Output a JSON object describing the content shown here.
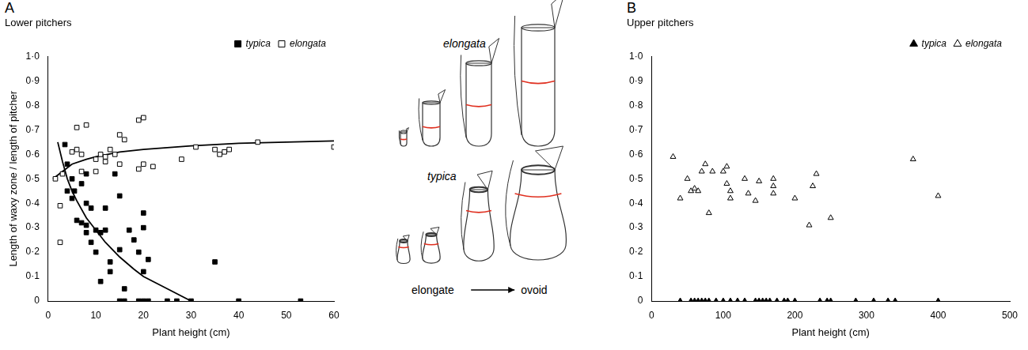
{
  "chart_data": [
    {
      "panel": "A",
      "type": "scatter",
      "title": "Lower pitchers",
      "x_label": "Plant height (cm)",
      "y_label": "Length of waxy zone / length of pitcher",
      "xlim": [
        0,
        60
      ],
      "xticks": [
        0,
        10,
        20,
        30,
        40,
        50,
        60
      ],
      "ylim": [
        0,
        1
      ],
      "yticks": [
        0,
        {
          "value": 0.1,
          "label": "0·1"
        },
        {
          "value": 0.2,
          "label": "0·2"
        },
        {
          "value": 0.3,
          "label": "0·3"
        },
        {
          "value": 0.4,
          "label": "0·4"
        },
        {
          "value": 0.5,
          "label": "0·5"
        },
        {
          "value": 0.6,
          "label": "0·6"
        },
        {
          "value": 0.7,
          "label": "0·7"
        },
        {
          "value": 0.8,
          "label": "0·8"
        },
        {
          "value": 0.9,
          "label": "0·9"
        },
        {
          "value": 1,
          "label": "1·0"
        }
      ],
      "grid": false,
      "legend": "top right",
      "series": [
        {
          "name": "typica",
          "color": "#000000",
          "marker": "filled square",
          "x": [
            3.5,
            4,
            5,
            4,
            5.5,
            5,
            6,
            7,
            8,
            7,
            8,
            8,
            9,
            8,
            9,
            10,
            11,
            10,
            12,
            12,
            11,
            13,
            13,
            14,
            15,
            15,
            15,
            16,
            16,
            17,
            18,
            19,
            20,
            20,
            21,
            20,
            19,
            20,
            21,
            25,
            27,
            30,
            35,
            40,
            53
          ],
          "values": [
            0.64,
            0.56,
            0.5,
            0.45,
            0.45,
            0.42,
            0.33,
            0.32,
            0.31,
            0.48,
            0.52,
            0.4,
            0.38,
            0.28,
            0.24,
            0.29,
            0.28,
            0.2,
            0.38,
            0.29,
            0.08,
            0.16,
            0.12,
            0.52,
            0.43,
            0.21,
            0,
            0.05,
            0,
            0.29,
            0.25,
            0.2,
            0.36,
            0.3,
            0.17,
            0.12,
            0,
            0,
            0,
            0,
            0,
            0,
            0.16,
            0,
            0
          ]
        },
        {
          "name": "elongata",
          "color": "#000000",
          "marker": "open square",
          "x": [
            1.5,
            2.5,
            2.5,
            3,
            5,
            6,
            6,
            7,
            8,
            7,
            10,
            10,
            11,
            12,
            12,
            13,
            14,
            15,
            15,
            16,
            19,
            20,
            19,
            20,
            22,
            28,
            31,
            35,
            36,
            37,
            38,
            44,
            60
          ],
          "values": [
            0.5,
            0.24,
            0.39,
            0.52,
            0.61,
            0.71,
            0.62,
            0.6,
            0.72,
            0.53,
            0.53,
            0.58,
            0.6,
            0.59,
            0.57,
            0.62,
            0.6,
            0.68,
            0.56,
            0.66,
            0.74,
            0.75,
            0.54,
            0.56,
            0.55,
            0.58,
            0.63,
            0.62,
            0.6,
            0.61,
            0.62,
            0.65,
            0.63
          ]
        },
        {
          "type": "line",
          "color": "#000000",
          "line_style": "solid",
          "x": [
            2,
            3,
            4,
            5,
            6,
            8,
            10,
            12,
            15,
            18,
            20,
            25,
            30
          ],
          "values": [
            0.65,
            0.57,
            0.5,
            0.45,
            0.41,
            0.34,
            0.29,
            0.24,
            0.18,
            0.13,
            0.1,
            0.05,
            0
          ]
        },
        {
          "type": "line",
          "color": "#000000",
          "line_style": "solid",
          "x": [
            1,
            3,
            5,
            8,
            10,
            15,
            20,
            30,
            40,
            50,
            60
          ],
          "values": [
            0.5,
            0.53,
            0.56,
            0.58,
            0.59,
            0.61,
            0.62,
            0.635,
            0.645,
            0.65,
            0.655
          ]
        }
      ]
    },
    {
      "panel": "B",
      "type": "scatter",
      "title": "Upper pitchers",
      "x_label": "Plant height (cm)",
      "xlim": [
        0,
        500
      ],
      "xticks": [
        0,
        100,
        200,
        300,
        400,
        500
      ],
      "ylim": [
        0,
        1
      ],
      "yticks": [
        0,
        {
          "value": 0.1,
          "label": "0·1"
        },
        {
          "value": 0.2,
          "label": "0·2"
        },
        {
          "value": 0.3,
          "label": "0·3"
        },
        {
          "value": 0.4,
          "label": "0·4"
        },
        {
          "value": 0.5,
          "label": "0·5"
        },
        {
          "value": 0.6,
          "label": "0·6"
        },
        {
          "value": 0.7,
          "label": "0·7"
        },
        {
          "value": 0.8,
          "label": "0·8"
        },
        {
          "value": 0.9,
          "label": "0·9"
        },
        {
          "value": 1,
          "label": "1·0"
        }
      ],
      "grid": false,
      "legend": "top right",
      "series": [
        {
          "name": "typica",
          "color": "#000000",
          "marker": "filled triangle",
          "x": [
            40,
            55,
            60,
            65,
            70,
            75,
            80,
            90,
            100,
            110,
            120,
            130,
            145,
            150,
            155,
            160,
            165,
            175,
            185,
            190,
            200,
            235,
            245,
            250,
            285,
            310,
            330,
            340,
            400
          ],
          "values": [
            0,
            0,
            0,
            0,
            0,
            0,
            0,
            0,
            0,
            0,
            0,
            0,
            0,
            0,
            0,
            0,
            0,
            0,
            0,
            0,
            0,
            0,
            0,
            0,
            0,
            0,
            0,
            0,
            0
          ]
        },
        {
          "name": "elongata",
          "color": "#000000",
          "marker": "open triangle",
          "x": [
            30,
            40,
            50,
            55,
            60,
            65,
            70,
            75,
            80,
            85,
            100,
            105,
            105,
            110,
            110,
            130,
            135,
            145,
            150,
            170,
            170,
            170,
            200,
            220,
            225,
            230,
            250,
            365,
            400
          ],
          "values": [
            0.59,
            0.42,
            0.5,
            0.45,
            0.46,
            0.45,
            0.53,
            0.56,
            0.36,
            0.53,
            0.53,
            0.55,
            0.48,
            0.42,
            0.45,
            0.5,
            0.44,
            0.41,
            0.49,
            0.5,
            0.47,
            0.44,
            0.42,
            0.31,
            0.47,
            0.52,
            0.34,
            0.58,
            0.43
          ]
        }
      ]
    }
  ],
  "illustration": {
    "upper_label": "elongata",
    "lower_label": "typica",
    "caption_from": "elongate",
    "caption_to": "ovoid"
  }
}
